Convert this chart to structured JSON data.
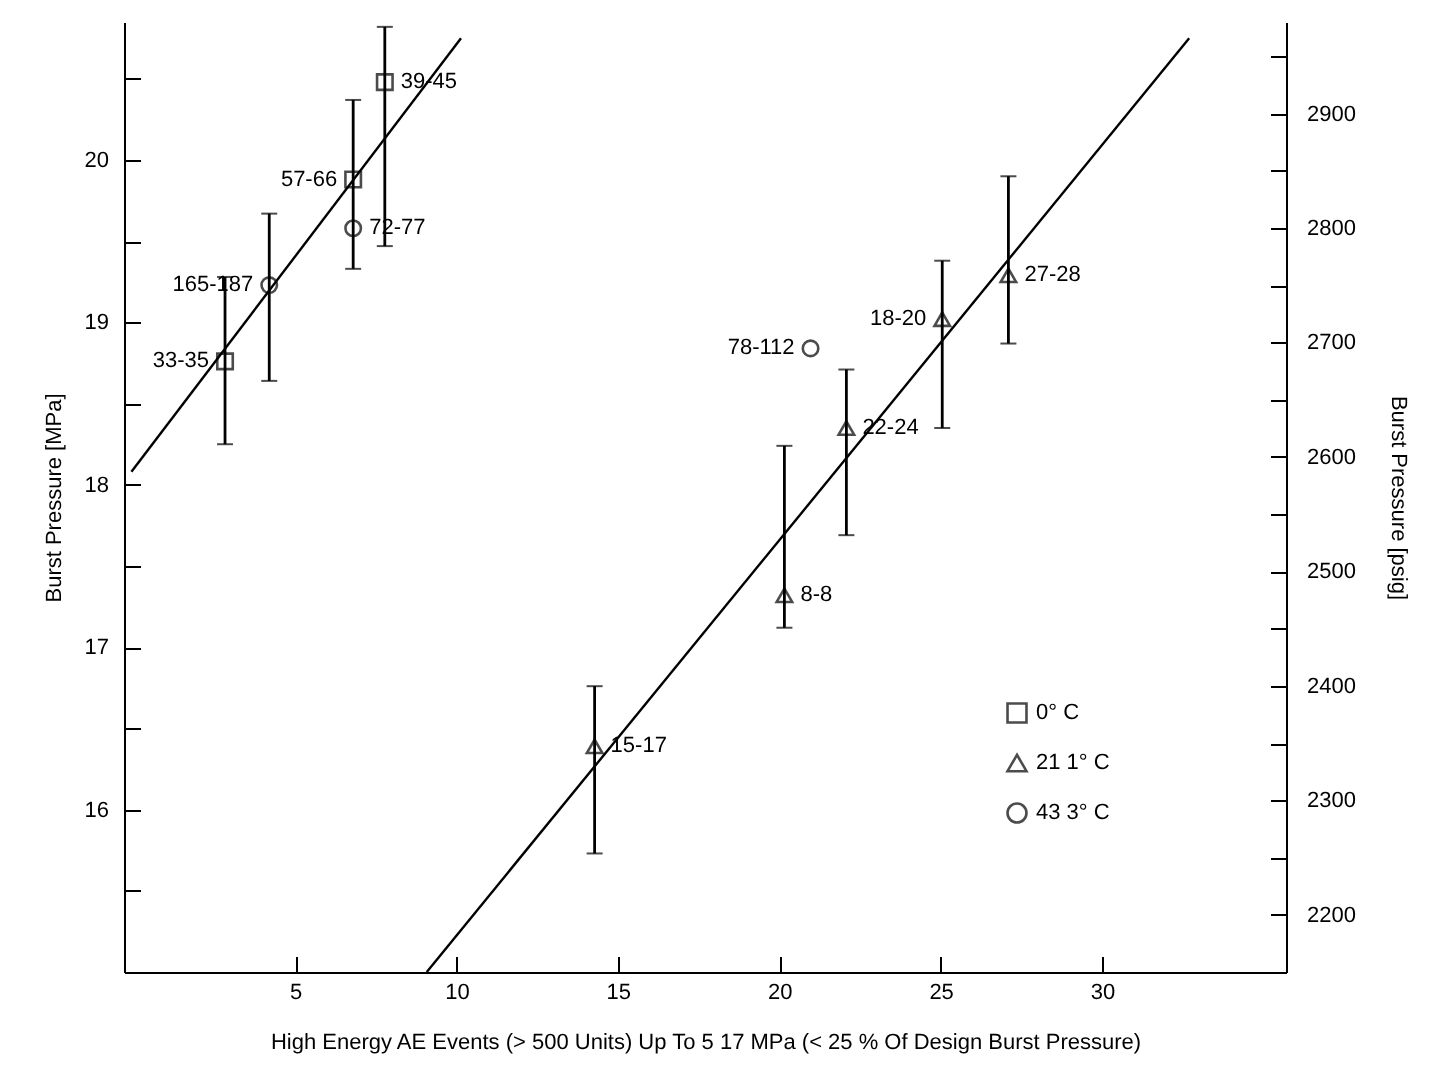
{
  "chart_data": {
    "type": "scatter",
    "xlabel": "High Energy AE Events (> 500 Units) Up To 5 17 MPa (< 25 % Of Design Burst Pressure)",
    "ylabel": "Burst Pressure [MPa]",
    "y2label": "Burst Pressure [psig]",
    "xlim": [
      -0.3,
      35.7
    ],
    "xticks": [
      5,
      10,
      15,
      20,
      25,
      30
    ],
    "ylim": [
      15,
      20.85
    ],
    "yticks": [
      {
        "value": 15.5,
        "label": null
      },
      16,
      {
        "value": 16.5,
        "label": null
      },
      17,
      {
        "value": 17.5,
        "label": null
      },
      18,
      {
        "value": 18.5,
        "label": null
      },
      19,
      {
        "value": 19.5,
        "label": null
      },
      20,
      {
        "value": 20.5,
        "label": null
      }
    ],
    "y2lim": [
      2150,
      2980
    ],
    "y2ticks": [
      2200,
      {
        "value": 2250,
        "label": null
      },
      2300,
      {
        "value": 2350,
        "label": null
      },
      2400,
      {
        "value": 2450,
        "label": null
      },
      2500,
      {
        "value": 2550,
        "label": null
      },
      2600,
      {
        "value": 2650,
        "label": null
      },
      2700,
      {
        "value": 2750,
        "label": null
      },
      2800,
      {
        "value": 2850,
        "label": null
      },
      2900,
      {
        "value": 2950,
        "label": null
      }
    ],
    "grid": false,
    "legend": "bottom right",
    "series": [
      {
        "name": "0° C",
        "color": "#000000",
        "marker": "square",
        "x": [
          2.83,
          6.8,
          7.78
        ],
        "values": [
          18.76,
          19.88,
          20.48
        ],
        "errors": [
          [
            18.25,
            19.28
          ],
          [
            19.33,
            20.37
          ],
          [
            19.47,
            20.82
          ]
        ]
      },
      {
        "name": "21 1° C",
        "color": "#000000",
        "marker": "triangle",
        "x": [
          14.28,
          20.16,
          22.08,
          25.05,
          27.1
        ],
        "values": [
          16.39,
          17.32,
          18.35,
          19.02,
          19.29
        ],
        "errors": [
          [
            15.73,
            16.76
          ],
          [
            17.12,
            18.24
          ],
          [
            17.69,
            18.71
          ],
          [
            18.35,
            19.38
          ],
          [
            18.87,
            19.9
          ]
        ]
      },
      {
        "name": "43 3° C",
        "color": "#000000",
        "marker": "circle",
        "x": [
          4.2,
          6.8,
          20.97
        ],
        "values": [
          19.23,
          19.58,
          18.84
        ],
        "errors": [
          [
            18.64,
            19.67
          ],
          null,
          null
        ]
      },
      {
        "type": "line",
        "color": "#000000",
        "x": [
          -0.07,
          10.14
        ],
        "values": [
          18.08,
          20.75
        ]
      },
      {
        "type": "line",
        "color": "#000000",
        "x": [
          9.08,
          32.7
        ],
        "values": [
          15.0,
          20.75
        ]
      }
    ],
    "annotations": [
      {
        "text": "33-35",
        "x": 2.83,
        "y": 18.76
      },
      {
        "text": "165-187",
        "x": 4.2,
        "y": 19.23
      },
      {
        "text": "57-66",
        "x": 6.8,
        "y": 19.88
      },
      {
        "text": "72-77",
        "x": 6.8,
        "y": 19.58
      },
      {
        "text": "39-45",
        "x": 7.78,
        "y": 20.48
      },
      {
        "text": "15-17",
        "x": 14.28,
        "y": 16.39
      },
      {
        "text": "8-8",
        "x": 20.16,
        "y": 17.32
      },
      {
        "text": "22-24",
        "x": 22.08,
        "y": 18.35
      },
      {
        "text": "78-112",
        "x": 20.97,
        "y": 18.84
      },
      {
        "text": "18-20",
        "x": 25.05,
        "y": 19.02
      },
      {
        "text": "27-28",
        "x": 27.1,
        "y": 19.29
      }
    ]
  }
}
